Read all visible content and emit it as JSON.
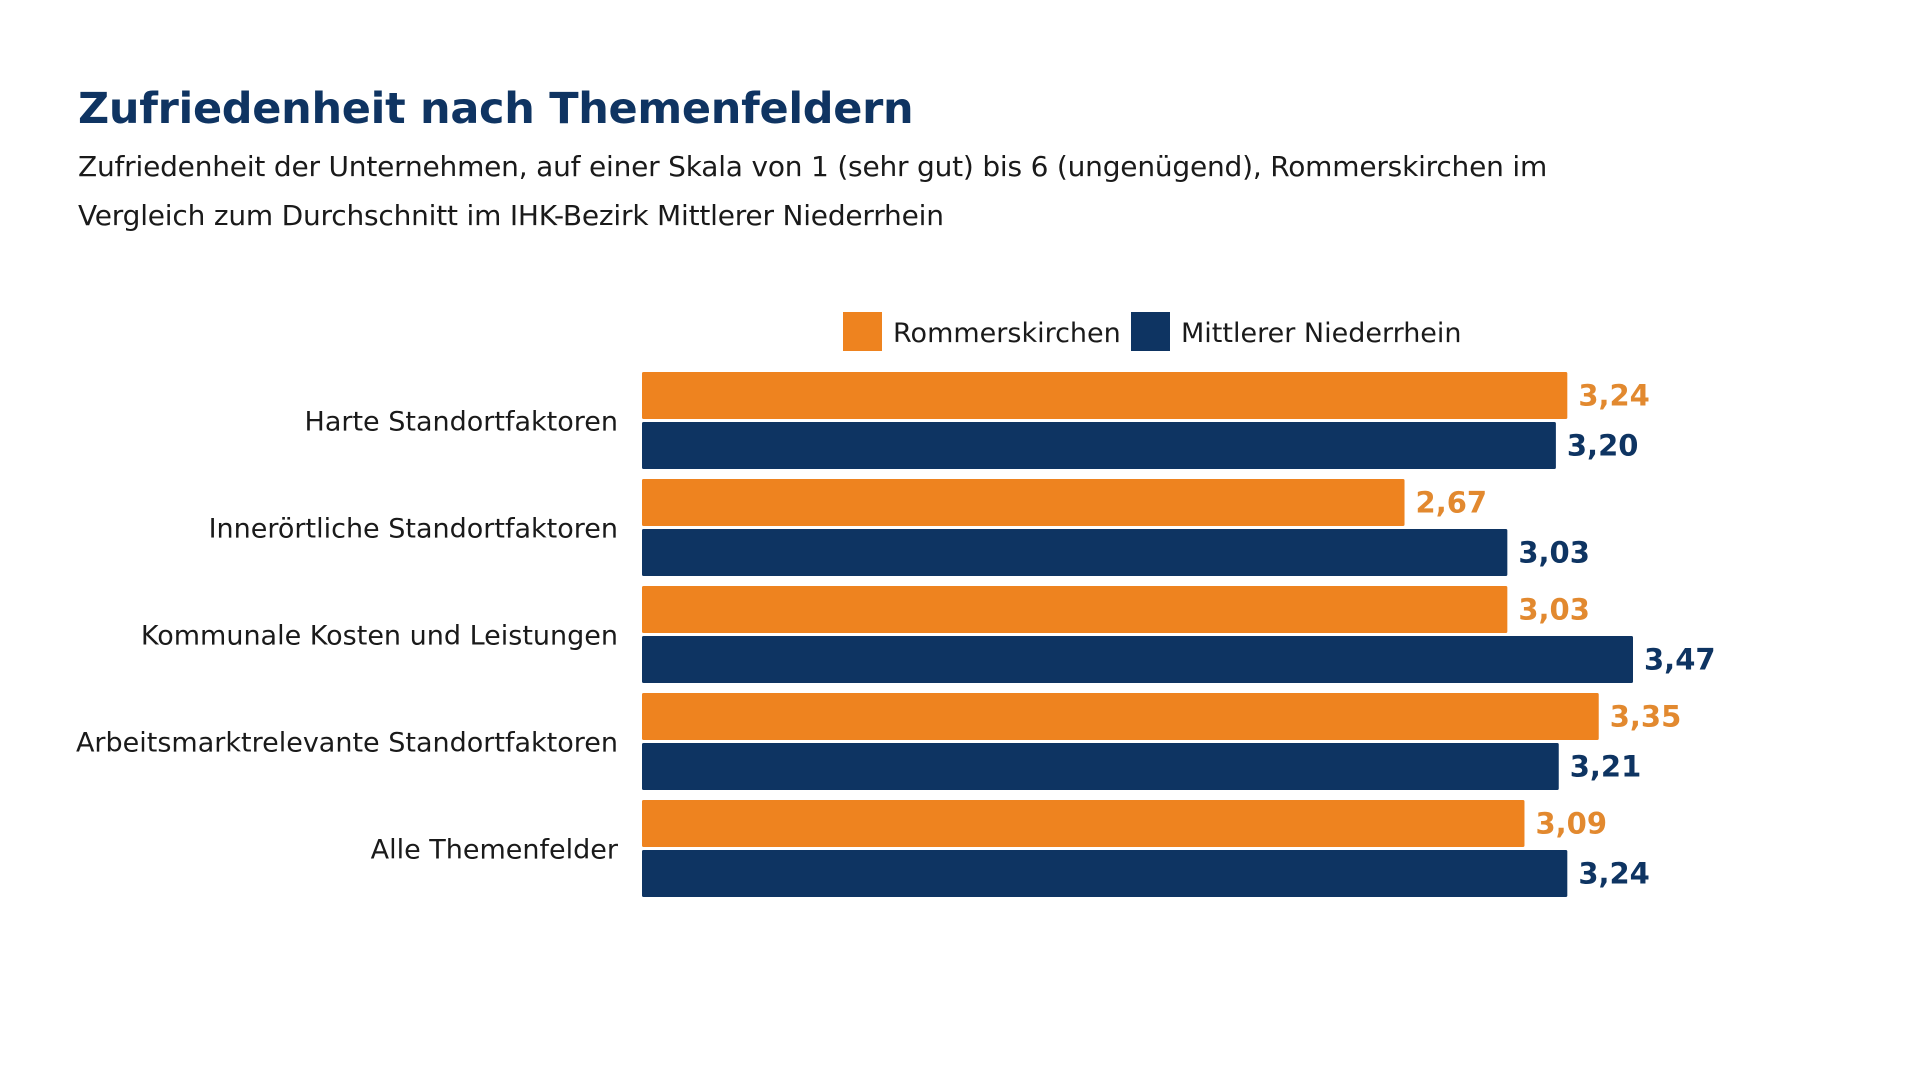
{
  "chart_data": {
    "type": "bar",
    "orientation": "horizontal",
    "title": "Zufriedenheit nach Themenfeldern",
    "subtitle": "Zufriedenheit der Unternehmen, auf einer Skala von 1 (sehr gut) bis 6 (ungenügend), Rommerskirchen im Vergleich zum Durchschnitt im IHK-Bezirk Mittlerer Niederrhein",
    "categories": [
      "Harte Standortfaktoren",
      "Innerörtliche Standortfaktoren",
      "Kommunale Kosten und Leistungen",
      "Arbeitsmarktrelevante Standortfaktoren",
      "Alle Themenfelder"
    ],
    "series": [
      {
        "name": "Rommerskirchen",
        "color": "#ee831f",
        "values": [
          3.24,
          2.67,
          3.03,
          3.35,
          3.09
        ],
        "labels": [
          "3,24",
          "2,67",
          "3,03",
          "3,35",
          "3,09"
        ]
      },
      {
        "name": "Mittlerer Niederrhein",
        "color": "#0e3462",
        "values": [
          3.2,
          3.03,
          3.47,
          3.21,
          3.24
        ],
        "labels": [
          "3,20",
          "3,03",
          "3,47",
          "3,21",
          "3,24"
        ]
      }
    ],
    "legend_position": "top",
    "grid": false,
    "axis_visible": false,
    "xlim": [
      0,
      3.47
    ]
  }
}
